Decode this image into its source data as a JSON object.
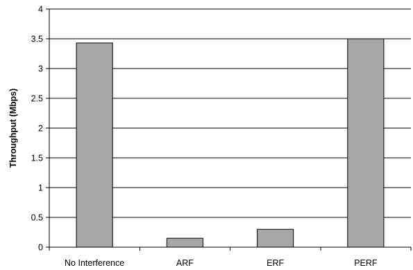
{
  "chart_data": {
    "type": "bar",
    "title": "",
    "xlabel": "",
    "ylabel": "Throughput (Mbps)",
    "categories": [
      "No Interference",
      "ARF",
      "ERF",
      "PERF"
    ],
    "values": [
      3.43,
      0.15,
      0.3,
      3.5
    ],
    "ylim": [
      0,
      4
    ],
    "yticks": [
      0,
      0.5,
      1,
      1.5,
      2,
      2.5,
      3,
      3.5,
      4
    ],
    "ytick_labels": [
      "0",
      "0.5",
      "1",
      "1.5",
      "2",
      "2.5",
      "3",
      "3.5",
      "4"
    ],
    "grid": "horizontal",
    "legend": "none",
    "colors": {
      "bar_fill": "#a6a6a6",
      "bar_stroke": "#000000",
      "gridline": "#000000",
      "axis": "#000000"
    }
  }
}
